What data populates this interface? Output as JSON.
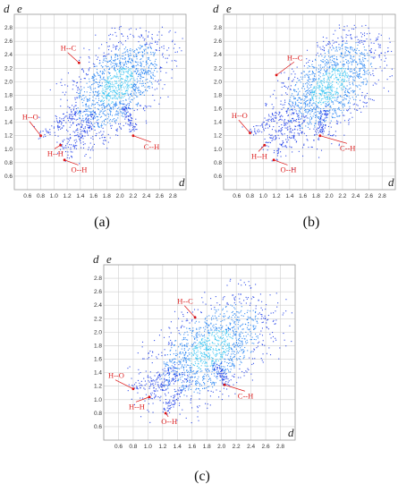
{
  "panels": [
    {
      "id": "a",
      "caption": "(a)",
      "xlabel": "d",
      "ylabel": "d",
      "ylabel_suffix": "e",
      "xticks": [
        "0.6",
        "0.8",
        "1.0",
        "1.2",
        "1.4",
        "1.6",
        "1.8",
        "2.0",
        "2.2",
        "2.4",
        "2.6",
        "2.8"
      ],
      "yticks": [
        "0.6",
        "0.8",
        "1.0",
        "1.2",
        "1.4",
        "1.6",
        "1.8",
        "2.0",
        "2.2",
        "2.4",
        "2.6",
        "2.8"
      ],
      "annotations": [
        {
          "text": "H--C",
          "x": 1.1,
          "y": 2.46,
          "tx": 1.38,
          "ty": 2.28
        },
        {
          "text": "H--O",
          "x": 0.52,
          "y": 1.44,
          "tx": 0.8,
          "ty": 1.2
        },
        {
          "text": "H--H",
          "x": 0.9,
          "y": 0.9,
          "tx": 1.1,
          "ty": 1.06
        },
        {
          "text": "O--H",
          "x": 1.26,
          "y": 0.66,
          "tx": 1.16,
          "ty": 0.84
        },
        {
          "text": "C--H",
          "x": 2.36,
          "y": 1.0,
          "tx": 2.2,
          "ty": 1.2
        }
      ]
    },
    {
      "id": "b",
      "caption": "(b)",
      "xlabel": "d",
      "ylabel": "d",
      "ylabel_suffix": "e",
      "xticks": [
        "0.6",
        "0.8",
        "1.0",
        "1.2",
        "1.4",
        "1.6",
        "1.8",
        "2.0",
        "2.2",
        "2.4",
        "2.6",
        "2.8"
      ],
      "yticks": [
        "0.6",
        "0.8",
        "1.0",
        "1.2",
        "1.4",
        "1.6",
        "1.8",
        "2.0",
        "2.2",
        "2.4",
        "2.6",
        "2.8"
      ],
      "annotations": [
        {
          "text": "H--C",
          "x": 1.36,
          "y": 2.32,
          "tx": 1.2,
          "ty": 2.1
        },
        {
          "text": "H--O",
          "x": 0.52,
          "y": 1.46,
          "tx": 0.8,
          "ty": 1.24
        },
        {
          "text": "H--H",
          "x": 0.82,
          "y": 0.86,
          "tx": 1.02,
          "ty": 1.06
        },
        {
          "text": "O--H",
          "x": 1.26,
          "y": 0.66,
          "tx": 1.16,
          "ty": 0.84
        },
        {
          "text": "C--H",
          "x": 2.16,
          "y": 0.98,
          "tx": 1.86,
          "ty": 1.2
        }
      ]
    },
    {
      "id": "c",
      "caption": "(c)",
      "xlabel": "d",
      "ylabel": "d",
      "ylabel_suffix": "e",
      "xticks": [
        "0.6",
        "0.8",
        "1.0",
        "1.2",
        "1.4",
        "1.6",
        "1.8",
        "2.0",
        "2.2",
        "2.4",
        "2.6",
        "2.8"
      ],
      "yticks": [
        "0.6",
        "0.8",
        "1.0",
        "1.2",
        "1.4",
        "1.6",
        "1.8",
        "2.0",
        "2.2",
        "2.4",
        "2.6",
        "2.8"
      ],
      "annotations": [
        {
          "text": "H--C",
          "x": 1.4,
          "y": 2.42,
          "tx": 1.64,
          "ty": 2.22
        },
        {
          "text": "H--O",
          "x": 0.46,
          "y": 1.32,
          "tx": 0.8,
          "ty": 1.16
        },
        {
          "text": "H--H",
          "x": 0.74,
          "y": 0.86,
          "tx": 1.02,
          "ty": 1.04
        },
        {
          "text": "O--H",
          "x": 1.18,
          "y": 0.64,
          "tx": 1.24,
          "ty": 0.8
        },
        {
          "text": "C--H",
          "x": 2.22,
          "y": 1.02,
          "tx": 2.04,
          "ty": 1.22
        }
      ]
    }
  ],
  "chart_data": [
    {
      "type": "scatter",
      "xlabel": "d",
      "ylabel": "d",
      "xlim": [
        0.4,
        3.0
      ],
      "ylim": [
        0.4,
        3.0
      ],
      "grid": true,
      "note": "density scatter, blue-to-cyan colour scale",
      "annotations": [
        "H--C",
        "H--O",
        "H--H",
        "O--H",
        "C--H"
      ]
    },
    {
      "type": "scatter",
      "xlabel": "d",
      "ylabel": "d",
      "xlim": [
        0.4,
        3.0
      ],
      "ylim": [
        0.4,
        3.0
      ],
      "grid": true,
      "annotations": [
        "H--C",
        "H--O",
        "H--H",
        "O--H",
        "C--H"
      ]
    },
    {
      "type": "scatter",
      "xlabel": "d",
      "ylabel": "d",
      "xlim": [
        0.4,
        3.0
      ],
      "ylim": [
        0.4,
        3.0
      ],
      "grid": true,
      "annotations": [
        "H--C",
        "H--O",
        "H--H",
        "O--H",
        "C--H"
      ]
    }
  ],
  "colors": {
    "point_dark": "#1233e6",
    "point_mid": "#1a7df2",
    "point_core": "#35c3f2",
    "arrow": "#dd1111",
    "grid": "#cfcfcf"
  }
}
